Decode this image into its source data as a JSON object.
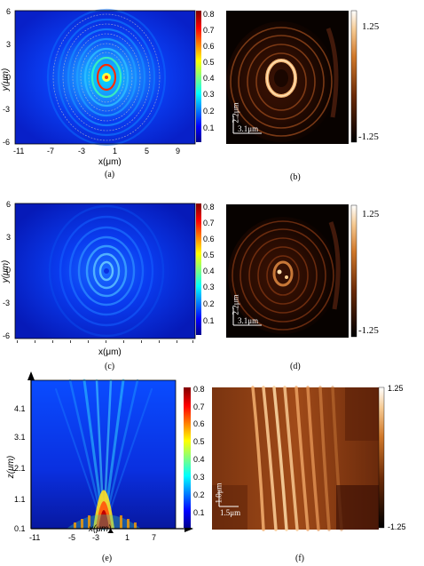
{
  "panels": {
    "a": {
      "caption": "(a)",
      "xlabel": "x(μm)",
      "ylabel": "y(μm)",
      "xticks": [
        "-11",
        "-7",
        "-3",
        "1",
        "5",
        "9"
      ],
      "yticks": [
        "6",
        "3",
        "0",
        "-3",
        "-6"
      ],
      "colorbar_ticks": [
        "0.8",
        "0.7",
        "0.6",
        "0.5",
        "0.4",
        "0.3",
        "0.2",
        "0.1"
      ]
    },
    "b": {
      "caption": "(b)",
      "colorbar_max": "1.25",
      "colorbar_min": "-1.25",
      "scale_v": "2.2μm",
      "scale_h": "3.1μm"
    },
    "c": {
      "caption": "(c)",
      "xlabel": "x(μm)",
      "ylabel": "y(μm)",
      "yticks": [
        "6",
        "3",
        "0",
        "-3",
        "-6"
      ],
      "colorbar_ticks": [
        "0.8",
        "0.7",
        "0.6",
        "0.5",
        "0.4",
        "0.3",
        "0.2",
        "0.1"
      ]
    },
    "d": {
      "caption": "(d)",
      "colorbar_max": "1.25",
      "colorbar_min": "-1.25",
      "scale_v": "2.2μm",
      "scale_h": "3.1μm"
    },
    "e": {
      "caption": "(e)",
      "xlabel": "x(μm)",
      "ylabel": "z(μm)",
      "xticks": [
        "-11",
        "-5",
        "-3",
        "1",
        "7"
      ],
      "yticks": [
        "4.1",
        "3.1",
        "2.1",
        "1.1",
        "0.1"
      ],
      "colorbar_ticks": [
        "0.8",
        "0.7",
        "0.6",
        "0.5",
        "0.4",
        "0.3",
        "0.2",
        "0.1"
      ]
    },
    "f": {
      "caption": "(f)",
      "colorbar_max": "1.25",
      "colorbar_min": "-1.25",
      "scale_v": "1.0μm",
      "scale_h": "1.5μm"
    }
  },
  "colors": {
    "jet_dark": "#00008f",
    "jet_blue": "#0000ff",
    "jet_cyan": "#00ffff",
    "jet_yellow": "#ffff00",
    "jet_red": "#ff0000",
    "jet_darkred": "#800000",
    "hot_black": "#000000",
    "hot_brown": "#8a3a10",
    "hot_orange": "#f0a040",
    "hot_white": "#ffffff"
  }
}
